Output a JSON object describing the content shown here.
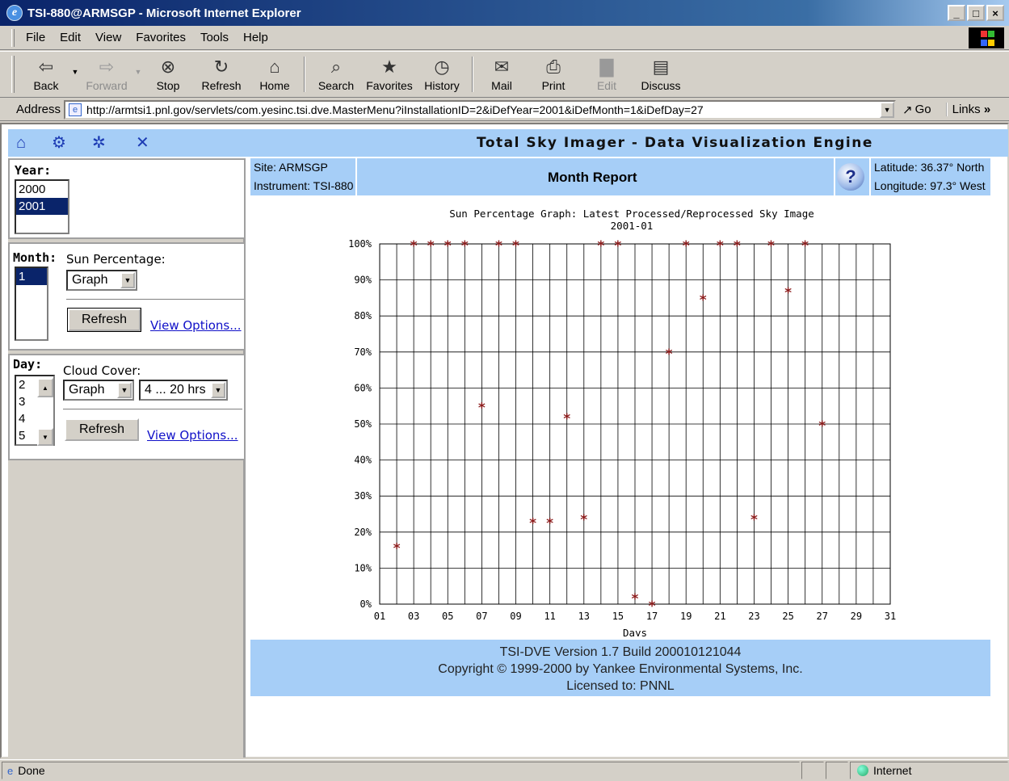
{
  "window": {
    "title": "TSI-880@ARMSGP - Microsoft Internet Explorer",
    "controls": {
      "minimize": "_",
      "maximize": "□",
      "close": "×"
    }
  },
  "menu": [
    "File",
    "Edit",
    "View",
    "Favorites",
    "Tools",
    "Help"
  ],
  "toolbar": {
    "buttons": [
      {
        "label": "Back",
        "icon": "back-arrow-icon",
        "enabled": true
      },
      {
        "label": "Forward",
        "icon": "forward-arrow-icon",
        "enabled": false
      },
      {
        "label": "Stop",
        "icon": "stop-icon",
        "enabled": true
      },
      {
        "label": "Refresh",
        "icon": "refresh-icon",
        "enabled": true
      },
      {
        "label": "Home",
        "icon": "home-icon",
        "enabled": true
      },
      {
        "label": "Search",
        "icon": "search-icon",
        "enabled": true
      },
      {
        "label": "Favorites",
        "icon": "favorites-icon",
        "enabled": true
      },
      {
        "label": "History",
        "icon": "history-icon",
        "enabled": true
      },
      {
        "label": "Mail",
        "icon": "mail-icon",
        "enabled": true
      },
      {
        "label": "Print",
        "icon": "print-icon",
        "enabled": true
      },
      {
        "label": "Edit",
        "icon": "edit-icon",
        "enabled": false
      },
      {
        "label": "Discuss",
        "icon": "discuss-icon",
        "enabled": true
      }
    ]
  },
  "address": {
    "label": "Address",
    "url": "http://armtsi1.pnl.gov/servlets/com.yesinc.tsi.dve.MasterMenu?iInstallationID=2&iDefYear=2001&iDefMonth=1&iDefDay=27",
    "go_label": "Go",
    "links_label": "Links"
  },
  "app": {
    "title": "Total Sky Imager - Data Visualization Engine",
    "nav_icons": [
      "home-icon",
      "gears-icon",
      "settings-icon",
      "close-icon"
    ]
  },
  "year_panel": {
    "label": "Year:",
    "options": [
      "2000",
      "2001"
    ],
    "selected": "2001"
  },
  "month_panel": {
    "label": "Month:",
    "options": [
      "1"
    ],
    "selected": "1",
    "sun_label": "Sun Percentage:",
    "sun_select": "Graph",
    "refresh_label": "Refresh",
    "view_options_label": "View Options..."
  },
  "day_panel": {
    "label": "Day:",
    "options": [
      "2",
      "3",
      "4",
      "5"
    ],
    "cloud_label": "Cloud Cover:",
    "cloud_select": "Graph",
    "hours_select": "4 ... 20 hrs",
    "refresh_label": "Refresh",
    "view_options_label": "View Options..."
  },
  "report": {
    "site": "Site: ARMSGP",
    "instrument": "Instrument: TSI-880",
    "title": "Month Report",
    "latitude": "Latitude: 36.37° North",
    "longitude": "Longitude: 97.3° West"
  },
  "chart_data": {
    "type": "scatter",
    "title": "Sun Percentage Graph: Latest Processed/Reprocessed Sky Image",
    "subtitle": "2001-01",
    "xlabel": "Days",
    "ylabel": "",
    "xlim": [
      1,
      31
    ],
    "ylim": [
      0,
      100
    ],
    "x_ticks": [
      "01",
      "03",
      "05",
      "07",
      "09",
      "11",
      "13",
      "15",
      "17",
      "19",
      "21",
      "23",
      "25",
      "27",
      "29",
      "31"
    ],
    "y_ticks": [
      "0%",
      "10%",
      "20%",
      "30%",
      "40%",
      "50%",
      "60%",
      "70%",
      "80%",
      "90%",
      "100%"
    ],
    "grid": true,
    "marker": "*",
    "color": "#8b1a1a",
    "points": [
      {
        "x": 2,
        "y": 16
      },
      {
        "x": 3,
        "y": 100
      },
      {
        "x": 4,
        "y": 100
      },
      {
        "x": 5,
        "y": 100
      },
      {
        "x": 6,
        "y": 100
      },
      {
        "x": 7,
        "y": 55
      },
      {
        "x": 8,
        "y": 100
      },
      {
        "x": 9,
        "y": 100
      },
      {
        "x": 10,
        "y": 23
      },
      {
        "x": 11,
        "y": 23
      },
      {
        "x": 12,
        "y": 52
      },
      {
        "x": 13,
        "y": 24
      },
      {
        "x": 14,
        "y": 100
      },
      {
        "x": 15,
        "y": 100
      },
      {
        "x": 16,
        "y": 2
      },
      {
        "x": 17,
        "y": 0
      },
      {
        "x": 18,
        "y": 70
      },
      {
        "x": 19,
        "y": 100
      },
      {
        "x": 20,
        "y": 85
      },
      {
        "x": 21,
        "y": 100
      },
      {
        "x": 22,
        "y": 100
      },
      {
        "x": 23,
        "y": 24
      },
      {
        "x": 24,
        "y": 100
      },
      {
        "x": 25,
        "y": 87
      },
      {
        "x": 26,
        "y": 100
      },
      {
        "x": 27,
        "y": 50
      }
    ]
  },
  "footer": {
    "line1": "TSI-DVE Version 1.7 Build 200010121044",
    "line2": "Copyright © 1999-2000 by Yankee Environmental Systems, Inc.",
    "line3": "Licensed to: PNNL"
  },
  "status": {
    "text": "Done",
    "zone": "Internet"
  }
}
